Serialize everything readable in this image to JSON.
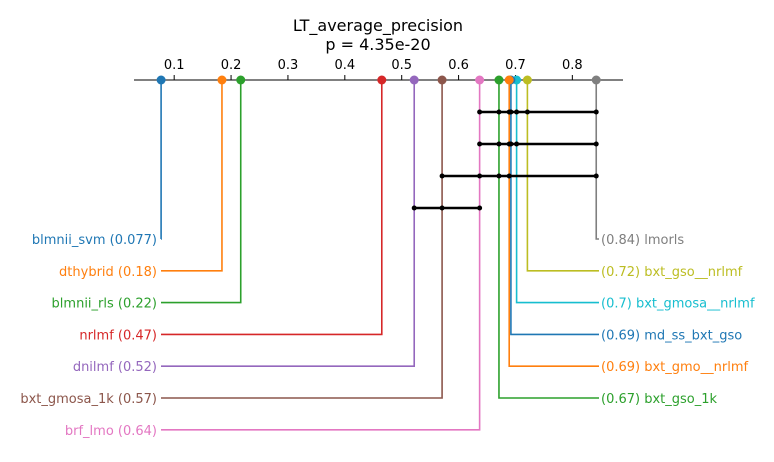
{
  "chart_data": {
    "type": "critical-difference-diagram",
    "title": "LT_average_precision",
    "subtitle": "p = 4.35e-20",
    "axis": {
      "ticks": [
        0.1,
        0.2,
        0.3,
        0.4,
        0.5,
        0.6,
        0.7,
        0.8
      ],
      "tick_labels": [
        "0.1",
        "0.2",
        "0.3",
        "0.4",
        "0.5",
        "0.6",
        "0.7",
        "0.8"
      ],
      "range": [
        0.03,
        0.89
      ]
    },
    "methods": [
      {
        "name": "blmnii_svm",
        "value": 0.077,
        "label": "blmnii_svm (0.077)",
        "side": "left",
        "color": "#1f77b4"
      },
      {
        "name": "dthybrid",
        "value": 0.184,
        "label": "dthybrid (0.18)",
        "side": "left",
        "color": "#ff7f0e"
      },
      {
        "name": "blmnii_rls",
        "value": 0.217,
        "label": "blmnii_rls (0.22)",
        "side": "left",
        "color": "#2ca02c"
      },
      {
        "name": "nrlmf",
        "value": 0.465,
        "label": "nrlmf (0.47)",
        "side": "left",
        "color": "#d62728"
      },
      {
        "name": "dnilmf",
        "value": 0.522,
        "label": "dnilmf (0.52)",
        "side": "left",
        "color": "#9467bd"
      },
      {
        "name": "bxt_gmosa_1k",
        "value": 0.571,
        "label": "bxt_gmosa_1k (0.57)",
        "side": "left",
        "color": "#8c564b"
      },
      {
        "name": "brf_lmo",
        "value": 0.637,
        "label": "brf_lmo (0.64)",
        "side": "left",
        "color": "#e377c2"
      },
      {
        "name": "lmorls",
        "value": 0.842,
        "label": "(0.84) lmorls",
        "side": "right",
        "color": "#7f7f7f"
      },
      {
        "name": "bxt_gso__nrlmf",
        "value": 0.721,
        "label": "(0.72) bxt_gso__nrlmf",
        "side": "right",
        "color": "#bcbd22"
      },
      {
        "name": "bxt_gmosa__nrlmf",
        "value": 0.702,
        "label": "(0.7) bxt_gmosa__nrlmf",
        "side": "right",
        "color": "#17becf"
      },
      {
        "name": "md_ss_bxt_gso",
        "value": 0.692,
        "label": "(0.69) md_ss_bxt_gso",
        "side": "right",
        "color": "#1f77b4"
      },
      {
        "name": "bxt_gmo__nrlmf",
        "value": 0.689,
        "label": "(0.69) bxt_gmo__nrlmf",
        "side": "right",
        "color": "#ff7f0e"
      },
      {
        "name": "bxt_gso_1k",
        "value": 0.671,
        "label": "(0.67) bxt_gso_1k",
        "side": "right",
        "color": "#2ca02c"
      }
    ],
    "cliques": [
      {
        "members": [
          "brf_lmo",
          "bxt_gso_1k",
          "bxt_gmo__nrlmf",
          "md_ss_bxt_gso",
          "bxt_gmosa__nrlmf",
          "bxt_gso__nrlmf",
          "lmorls"
        ]
      },
      {
        "members": [
          "brf_lmo",
          "bxt_gso_1k",
          "bxt_gmo__nrlmf",
          "md_ss_bxt_gso",
          "bxt_gmosa__nrlmf",
          "lmorls"
        ]
      },
      {
        "members": [
          "bxt_gmosa_1k",
          "brf_lmo",
          "bxt_gso_1k",
          "bxt_gmo__nrlmf",
          "lmorls"
        ]
      },
      {
        "members": [
          "dnilmf",
          "bxt_gmosa_1k",
          "brf_lmo"
        ]
      }
    ]
  }
}
